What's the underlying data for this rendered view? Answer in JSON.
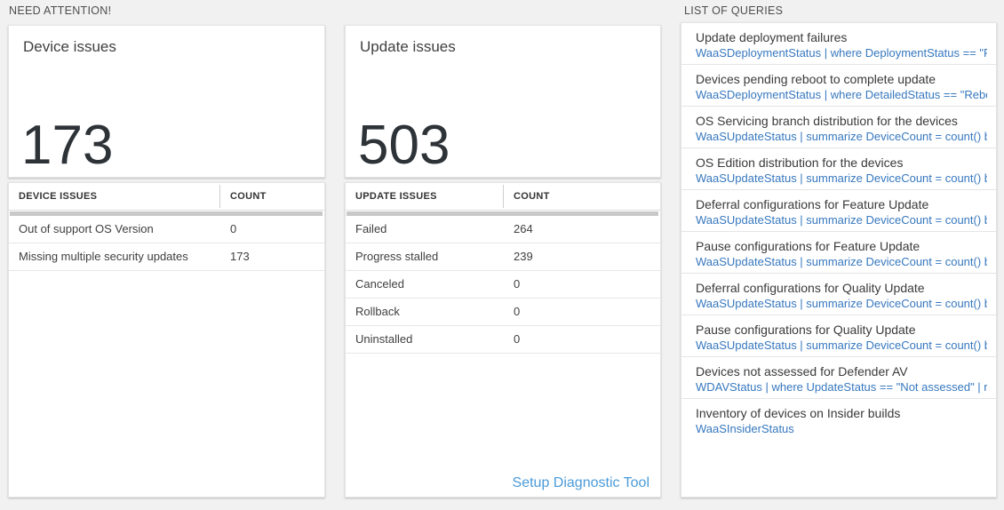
{
  "sections": {
    "need_attention": {
      "title": "NEED ATTENTION!"
    },
    "queries": {
      "title": "LIST OF QUERIES"
    }
  },
  "tiles": [
    {
      "title": "Device issues",
      "big_number": "173",
      "table": {
        "headers": [
          "DEVICE ISSUES",
          "COUNT"
        ],
        "rows": [
          {
            "label": "Out of support OS Version",
            "count": "0"
          },
          {
            "label": "Missing multiple security updates",
            "count": "173"
          }
        ]
      }
    },
    {
      "title": "Update issues",
      "big_number": "503",
      "table": {
        "headers": [
          "UPDATE ISSUES",
          "COUNT"
        ],
        "rows": [
          {
            "label": "Failed",
            "count": "264"
          },
          {
            "label": "Progress stalled",
            "count": "239"
          },
          {
            "label": "Canceled",
            "count": "0"
          },
          {
            "label": "Rollback",
            "count": "0"
          },
          {
            "label": "Uninstalled",
            "count": "0"
          }
        ]
      },
      "footer_link": "Setup Diagnostic Tool"
    }
  ],
  "queries_list": [
    {
      "title": "Update deployment failures",
      "query": "WaaSDeploymentStatus | where DeploymentStatus == \"Failed\" |..."
    },
    {
      "title": "Devices pending reboot to complete update",
      "query": "WaaSDeploymentStatus | where DetailedStatus == \"Reboot pend..."
    },
    {
      "title": "OS Servicing branch distribution for the devices",
      "query": "WaaSUpdateStatus | summarize DeviceCount = count() by OSSer..."
    },
    {
      "title": "OS Edition distribution for the devices",
      "query": "WaaSUpdateStatus | summarize DeviceCount = count() by OSEdit..."
    },
    {
      "title": "Deferral configurations for Feature Update",
      "query": "WaaSUpdateStatus | summarize DeviceCount = count() by Featur..."
    },
    {
      "title": "Pause configurations for Feature Update",
      "query": "WaaSUpdateStatus | summarize DeviceCount = count() by Featur..."
    },
    {
      "title": "Deferral configurations for Quality Update",
      "query": "WaaSUpdateStatus | summarize DeviceCount = count() by Qualit..."
    },
    {
      "title": "Pause configurations for Quality Update",
      "query": "WaaSUpdateStatus | summarize DeviceCount = count() by Qualit..."
    },
    {
      "title": "Devices not assessed for Defender AV",
      "query": "WDAVStatus | where UpdateStatus == \"Not assessed\" | render ta..."
    },
    {
      "title": "Inventory of devices on Insider builds",
      "query": "WaaSInsiderStatus"
    }
  ],
  "colors": {
    "background": "#f1f1f1",
    "card_background": "#ffffff",
    "card_border": "#e4e4e4",
    "query_blue": "#3778bf",
    "link_blue": "#4a9bd9",
    "big_number": "#2e3338",
    "scrollbar_gray": "#c8c8c8"
  }
}
